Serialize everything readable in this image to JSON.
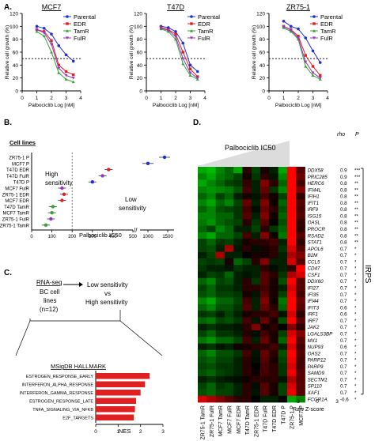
{
  "figure": {
    "panel_letters": [
      "A.",
      "B.",
      "C.",
      "D."
    ],
    "sample_labels": [
      "ZR75-1 TamR",
      "ZR75-1 FulR",
      "MCF7 TamR",
      "MCF7 FulR",
      "MCF7 EDR",
      "T47D TamR",
      "ZR75-1 EDR",
      "T47D FulR",
      "T47D EDR",
      "T47D P",
      "ZR75-1 P",
      "MCF7 P"
    ]
  },
  "panel_a": {
    "subplots": [
      {
        "title": "MCF7"
      },
      {
        "title": "T47D"
      },
      {
        "title": "ZR75-1"
      }
    ],
    "ylabel": "Relative cell growth (%)",
    "xlabel": "Palbociclib Log [nM]",
    "yticks": [
      "0",
      "20",
      "40",
      "60",
      "80",
      "100",
      "120"
    ],
    "xticks": [
      "0",
      "1",
      "2",
      "3",
      "4"
    ],
    "legend": [
      "Parental",
      "EDR",
      "TamR",
      "FulR"
    ],
    "colors": {
      "Parental": "#1f2fd6",
      "EDR": "#e02020",
      "TamR": "#2fa82f",
      "FulR": "#9b32c8"
    },
    "chart_data": [
      {
        "type": "line",
        "title": "MCF7",
        "xlabel": "Palbociclib Log [nM]",
        "ylabel": "Relative cell growth (%)",
        "xlim": [
          0,
          4
        ],
        "ylim": [
          0,
          120
        ],
        "series": [
          {
            "name": "Parental",
            "x": [
              1,
              1.5,
              2,
              2.5,
              3,
              3.5
            ],
            "values": [
              100,
              97,
              88,
              70,
              56,
              46
            ]
          },
          {
            "name": "EDR",
            "x": [
              1,
              1.5,
              2,
              2.5,
              3,
              3.5
            ],
            "values": [
              95,
              92,
              78,
              40,
              30,
              25
            ]
          },
          {
            "name": "TamR",
            "x": [
              1,
              1.5,
              2,
              2.5,
              3,
              3.5
            ],
            "values": [
              92,
              85,
              60,
              28,
              18,
              14
            ]
          },
          {
            "name": "FulR",
            "x": [
              1,
              1.5,
              2,
              2.5,
              3,
              3.5
            ],
            "values": [
              95,
              90,
              72,
              35,
              24,
              20
            ]
          }
        ]
      },
      {
        "type": "line",
        "title": "T47D",
        "xlabel": "Palbociclib Log [nM]",
        "ylabel": "Relative cell growth (%)",
        "xlim": [
          0,
          4
        ],
        "ylim": [
          0,
          120
        ],
        "series": [
          {
            "name": "Parental",
            "x": [
              1,
              1.5,
              2,
              2.5,
              3,
              3.5
            ],
            "values": [
              100,
              98,
              92,
              74,
              40,
              30
            ]
          },
          {
            "name": "EDR",
            "x": [
              1,
              1.5,
              2,
              2.5,
              3,
              3.5
            ],
            "values": [
              98,
              95,
              88,
              60,
              34,
              22
            ]
          },
          {
            "name": "TamR",
            "x": [
              1,
              1.5,
              2,
              2.5,
              3,
              3.5
            ],
            "values": [
              96,
              92,
              80,
              42,
              24,
              18
            ]
          },
          {
            "name": "FulR",
            "x": [
              1,
              1.5,
              2,
              2.5,
              3,
              3.5
            ],
            "values": [
              97,
              94,
              84,
              50,
              28,
              20
            ]
          }
        ]
      },
      {
        "type": "line",
        "title": "ZR75-1",
        "xlabel": "Palbociclib Log [nM]",
        "ylabel": "Relative cell growth (%)",
        "xlim": [
          0,
          4
        ],
        "ylim": [
          0,
          120
        ],
        "series": [
          {
            "name": "Parental",
            "x": [
              1,
              1.5,
              2,
              2.5,
              3,
              3.5
            ],
            "values": [
              108,
              100,
              96,
              82,
              62,
              44
            ]
          },
          {
            "name": "EDR",
            "x": [
              1,
              1.5,
              2,
              2.5,
              3,
              3.5
            ],
            "values": [
              100,
              95,
              85,
              55,
              38,
              24
            ]
          },
          {
            "name": "TamR",
            "x": [
              1,
              1.5,
              2,
              2.5,
              3,
              3.5
            ],
            "values": [
              98,
              92,
              80,
              38,
              24,
              18
            ]
          },
          {
            "name": "FulR",
            "x": [
              1,
              1.5,
              2,
              2.5,
              3,
              3.5
            ],
            "values": [
              100,
              94,
              82,
              45,
              28,
              20
            ]
          }
        ]
      }
    ]
  },
  "panel_b": {
    "legend_title": "Cell lines",
    "high_label": [
      "High",
      "sensitivity"
    ],
    "low_label": [
      "Low",
      "sensitivity"
    ],
    "xlabel": "Palbociclib IC50",
    "xticks": [
      "0",
      "100",
      "200",
      "300",
      "400",
      "500",
      "1000",
      "1500"
    ],
    "chart_data": {
      "type": "scatter",
      "xlabel": "Palbociclib IC50",
      "categories": [
        "ZR75-1 P",
        "MCF7 P",
        "T47D EDR",
        "T47D FulR",
        "T47D P",
        "MCF7 FulR",
        "ZR75-1 EDR",
        "MCF7 EDR",
        "T47D TamR",
        "MCF7 TamR",
        "ZR75-1 FulR",
        "ZR75-1 TamR"
      ],
      "values": [
        1420,
        1000,
        380,
        350,
        300,
        150,
        160,
        150,
        105,
        100,
        95,
        70
      ],
      "colors": [
        "#1f2fd6",
        "#1f2fd6",
        "#e02020",
        "#9b32c8",
        "#1f2fd6",
        "#9b32c8",
        "#e02020",
        "#e02020",
        "#2fa82f",
        "#2fa82f",
        "#9b32c8",
        "#2fa82f"
      ],
      "axis_break": true
    }
  },
  "panel_c": {
    "box_left": [
      "RNA-seq",
      "BC cell",
      "lines",
      "(n=12)"
    ],
    "box_right": [
      "Low sensitivity",
      "vs",
      "High sensitivity"
    ],
    "hallmark_title": "MSigDB HALLMARK",
    "xlabel": "NES",
    "xticks": [
      "0",
      "1",
      "2",
      "3"
    ],
    "chart_data": {
      "type": "bar",
      "xlabel": "NES",
      "xlim": [
        0,
        3
      ],
      "categories": [
        "ESTROGEN_RESPONSE_EARLY",
        "INTERFERON_ALPHA_RESPONSE",
        "INTERFERON_GAMMA_RESPONSE",
        "ESTROGEN_RESPONSE_LATE",
        "TNFA_SIGNALING_VIA_NFKB",
        "E2F_TARGETS"
      ],
      "values": [
        2.4,
        2.2,
        2.0,
        1.8,
        1.75,
        1.7
      ],
      "color": "#e02020"
    }
  },
  "panel_d": {
    "title": "Palbociclib IC50",
    "rho_header": "rho",
    "p_header": "P",
    "irps_label": "IRPS",
    "zscore_label": "Raw Z-score",
    "zscore_ticks": [
      "-3",
      "0",
      "3"
    ],
    "chart_data": {
      "type": "heatmap",
      "columns": [
        "ZR75-1 TamR",
        "ZR75-1 FulR",
        "MCF7 TamR",
        "MCF7 FulR",
        "MCF7 EDR",
        "T47D TamR",
        "ZR75-1 EDR",
        "T47D FulR",
        "T47D EDR",
        "T47D P",
        "ZR75-1 P",
        "MCF7 P"
      ],
      "rows": [
        "DDX58",
        "PRIC285",
        "HERC6",
        "IFI44L",
        "IFIH1",
        "IFIT1",
        "IRF9",
        "ISG15",
        "OASL",
        "PROCR",
        "RSAD2",
        "STAT1",
        "APOL6",
        "B2M",
        "CCL5",
        "CD47",
        "CSF1",
        "DDX60",
        "IFI27",
        "IFI35",
        "IFI44",
        "IFIT3",
        "IRF1",
        "IRF7",
        "JAK2",
        "LGALS3BP",
        "MX1",
        "NUP93",
        "OAS2",
        "PARP12",
        "PARP9",
        "SAMD9",
        "SECTM1",
        "SP110",
        "XAF1",
        "FCGR1A"
      ],
      "rho": [
        "0.9",
        "0.9",
        "0.8",
        "0.8",
        "0.8",
        "0.8",
        "0.8",
        "0.8",
        "0.8",
        "0.8",
        "0.8",
        "0.8",
        "0.7",
        "0.7",
        "0.7",
        "0.7",
        "0.7",
        "0.7",
        "0.7",
        "0.7",
        "0.7",
        "0.6",
        "0.6",
        "0.7",
        "0.7",
        "0.7",
        "0.7",
        "0.6",
        "0.7",
        "0.7",
        "0.7",
        "0.7",
        "0.7",
        "0.7",
        "0.7",
        "-0.6"
      ],
      "p": [
        "***",
        "***",
        "**",
        "**",
        "**",
        "**",
        "**",
        "**",
        "**",
        "**",
        "**",
        "**",
        "*",
        "*",
        "*",
        "*",
        "*",
        "*",
        "*",
        "*",
        "*",
        "*",
        "*",
        "*",
        "*",
        "*",
        "*",
        "*",
        "*",
        "*",
        "*",
        "*",
        "*",
        "*",
        "*",
        "*"
      ],
      "zscore_range": [
        -3,
        3
      ],
      "values": [
        [
          -2.5,
          -2.8,
          -2.0,
          -1.5,
          -2.5,
          0.5,
          -1.0,
          0.3,
          -0.5,
          -2.5,
          3,
          1.0
        ],
        [
          -2.0,
          -2.5,
          -1.8,
          -1.5,
          -1.0,
          0.3,
          -0.8,
          0.5,
          -0.3,
          -2.0,
          3,
          1.2
        ],
        [
          -2.5,
          -2.0,
          -1.5,
          -1.0,
          -0.8,
          0.6,
          -0.5,
          1.5,
          0.5,
          -1.5,
          3,
          0.8
        ],
        [
          -2.0,
          -2.2,
          -2.0,
          -1.8,
          -1.2,
          0.8,
          -0.5,
          1.2,
          -0.8,
          -2.0,
          3,
          1.5
        ],
        [
          -1.5,
          -2.0,
          -1.0,
          -1.5,
          -0.5,
          0.3,
          -0.3,
          0.8,
          0.2,
          -1.0,
          3,
          0.5
        ],
        [
          -2.0,
          -2.5,
          -1.5,
          -2.0,
          -1.0,
          1.2,
          -0.5,
          1.5,
          0.2,
          -1.5,
          3,
          1.0
        ],
        [
          -1.5,
          -2.0,
          -1.2,
          -1.0,
          -0.8,
          0.8,
          -0.2,
          1.2,
          0.5,
          -1.2,
          3,
          0.8
        ],
        [
          -2.0,
          -2.0,
          -1.5,
          -1.5,
          -0.8,
          1.0,
          -0.5,
          1.5,
          0.2,
          -1.5,
          3,
          1.0
        ],
        [
          -1.8,
          -2.2,
          -1.5,
          -1.2,
          -1.0,
          0.5,
          -0.8,
          1.0,
          0.0,
          -1.2,
          3,
          0.6
        ],
        [
          -1.5,
          -1.0,
          -2.0,
          -1.5,
          -0.5,
          -0.5,
          -1.0,
          0.5,
          -0.8,
          -1.5,
          3,
          0.5
        ],
        [
          -2.0,
          -2.5,
          -1.5,
          -1.5,
          -1.0,
          0.8,
          -0.5,
          1.5,
          0.2,
          -1.8,
          3,
          1.0
        ],
        [
          -1.0,
          -1.5,
          -0.8,
          -1.0,
          -0.5,
          0.3,
          0.5,
          0.5,
          0.8,
          -0.5,
          3,
          0.5
        ],
        [
          -1.0,
          -1.2,
          -0.5,
          2.0,
          -0.3,
          0.5,
          -0.2,
          0.3,
          0.5,
          -0.8,
          2.5,
          1.0
        ],
        [
          -0.5,
          -1.0,
          2.0,
          -0.5,
          -0.5,
          0.0,
          0.3,
          0.2,
          0.5,
          -0.5,
          2.0,
          1.5
        ],
        [
          -1.0,
          -0.8,
          -1.0,
          0.3,
          -1.5,
          -1.0,
          0.5,
          1.5,
          -0.5,
          -0.5,
          2.5,
          1.0
        ],
        [
          -0.8,
          -0.5,
          -0.5,
          -0.3,
          -0.8,
          -0.5,
          -0.5,
          0.5,
          -0.2,
          -0.5,
          0.5,
          3
        ],
        [
          -0.5,
          -1.0,
          -0.8,
          -1.5,
          -0.5,
          -0.3,
          -0.5,
          1.0,
          0.5,
          -0.8,
          2.0,
          2.5
        ],
        [
          -1.5,
          -2.0,
          -1.0,
          -1.2,
          -0.5,
          0.5,
          -0.8,
          1.0,
          0.3,
          -1.2,
          3,
          1.0
        ],
        [
          -1.0,
          -1.5,
          -0.8,
          -0.8,
          -0.5,
          0.5,
          0.5,
          0.8,
          0.3,
          -0.5,
          2.5,
          1.0
        ],
        [
          -1.2,
          -1.5,
          -1.0,
          -1.0,
          -0.8,
          0.3,
          -0.3,
          1.0,
          0.3,
          -1.0,
          2.8,
          0.8
        ],
        [
          -2.0,
          -2.5,
          -1.5,
          -1.5,
          -1.0,
          0.8,
          -0.5,
          1.5,
          0.2,
          -1.8,
          3,
          1.2
        ],
        [
          -1.5,
          -2.0,
          -1.2,
          -1.2,
          -0.8,
          1.0,
          -0.5,
          1.2,
          0.5,
          -1.5,
          3,
          1.0
        ],
        [
          -0.8,
          -1.0,
          -0.5,
          -1.0,
          -0.5,
          0.3,
          0.5,
          0.5,
          0.8,
          -0.3,
          2.5,
          0.5
        ],
        [
          -1.5,
          -1.8,
          -1.0,
          -1.2,
          -0.8,
          0.8,
          -0.3,
          1.2,
          0.3,
          -1.2,
          3,
          1.0
        ],
        [
          -0.5,
          -0.8,
          -0.5,
          -0.5,
          -0.3,
          0.5,
          1.5,
          0.2,
          0.5,
          0.0,
          1.5,
          0.5
        ],
        [
          -1.0,
          -1.5,
          -0.8,
          -0.8,
          -0.5,
          0.5,
          -0.2,
          0.8,
          0.3,
          -1.0,
          2.5,
          1.5
        ],
        [
          -1.8,
          -2.2,
          -1.5,
          -1.5,
          -1.0,
          0.8,
          -0.5,
          1.2,
          0.3,
          -1.5,
          3,
          1.0
        ],
        [
          -0.5,
          -0.8,
          -0.3,
          -0.5,
          0.2,
          0.3,
          0.5,
          0.5,
          0.8,
          -0.5,
          2.5,
          0.8
        ],
        [
          -1.5,
          -2.0,
          -1.2,
          -1.2,
          -0.8,
          0.8,
          -0.3,
          1.2,
          0.5,
          -1.2,
          3,
          1.0
        ],
        [
          -1.2,
          -1.5,
          -1.0,
          -1.0,
          -0.5,
          0.5,
          -0.2,
          1.0,
          0.3,
          -1.0,
          2.8,
          0.8
        ],
        [
          -1.0,
          -1.2,
          -0.8,
          -0.8,
          -0.5,
          0.5,
          0.0,
          0.8,
          0.5,
          -0.8,
          2.5,
          0.8
        ],
        [
          -1.2,
          -1.5,
          -1.0,
          -0.8,
          -0.5,
          0.5,
          0.2,
          0.8,
          0.5,
          -0.8,
          2.8,
          1.0
        ],
        [
          -0.5,
          -0.8,
          -0.5,
          -0.3,
          -0.2,
          0.2,
          0.5,
          0.5,
          0.5,
          -0.3,
          2.0,
          1.0
        ],
        [
          -1.0,
          -1.5,
          -0.8,
          -1.0,
          -0.5,
          0.5,
          -0.2,
          1.0,
          0.3,
          -1.0,
          2.5,
          1.0
        ],
        [
          -1.2,
          -1.5,
          -1.0,
          -1.0,
          -0.5,
          0.5,
          -0.3,
          1.0,
          0.3,
          -1.0,
          2.8,
          1.0
        ],
        [
          2.5,
          2.0,
          1.5,
          1.0,
          0.5,
          0.5,
          0.0,
          -0.5,
          -0.5,
          0.0,
          -2.5,
          -2.0
        ]
      ]
    }
  }
}
